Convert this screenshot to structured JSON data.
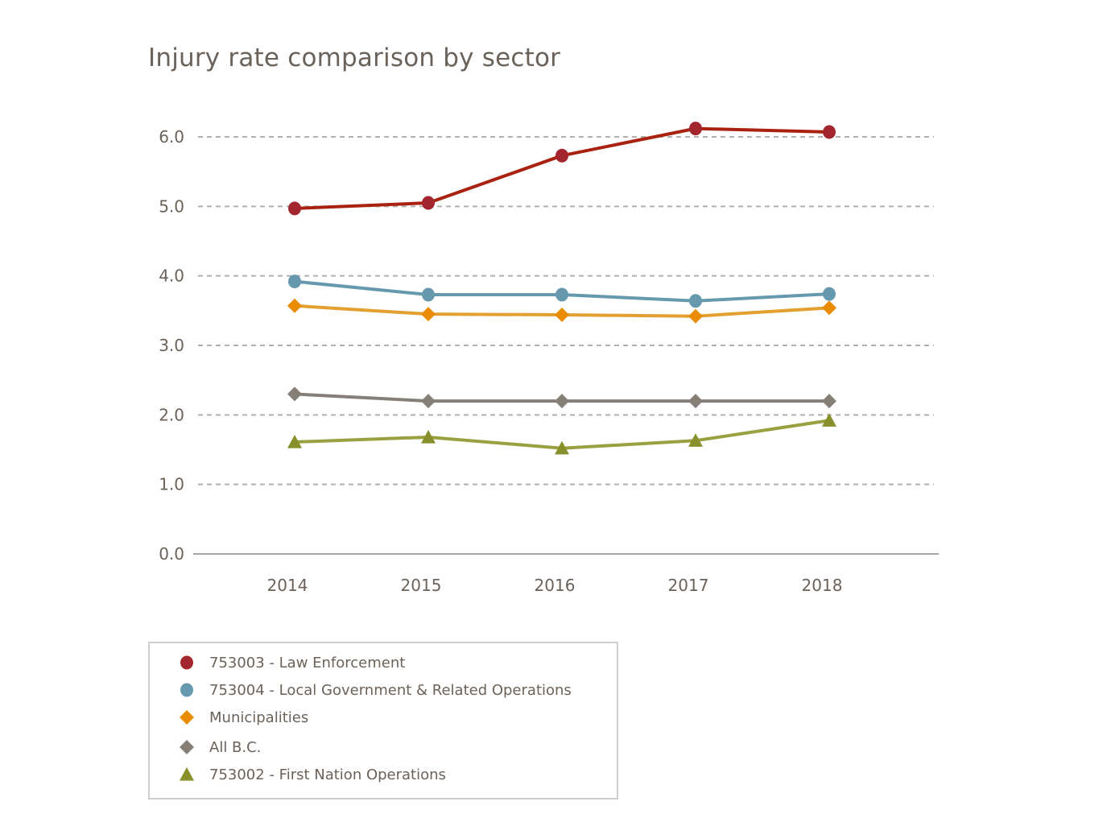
{
  "chart_data": {
    "type": "line",
    "title": "Injury rate comparison by sector",
    "xlabel": "",
    "ylabel": "",
    "x": [
      "2014",
      "2015",
      "2016",
      "2017",
      "2018"
    ],
    "ylim": [
      0,
      6.0
    ],
    "yticks": [
      "0.0",
      "1.0",
      "2.0",
      "3.0",
      "4.0",
      "5.0",
      "6.0"
    ],
    "grid": true,
    "legend_position": "bottom-left",
    "series": [
      {
        "name": "753003 - Law Enforcement",
        "marker": "circle",
        "color": "#a3262e",
        "line_color": "#a8220f",
        "values": [
          4.97,
          5.05,
          5.73,
          6.12,
          6.07
        ]
      },
      {
        "name": "753004 - Local Government & Related Operations",
        "marker": "circle",
        "color": "#6699ae",
        "line_color": "#6699ae",
        "values": [
          3.92,
          3.73,
          3.73,
          3.64,
          3.74
        ]
      },
      {
        "name": "Municipalities",
        "marker": "diamond",
        "color": "#e98c00",
        "line_color": "#e3a030",
        "values": [
          3.57,
          3.45,
          3.44,
          3.42,
          3.54
        ]
      },
      {
        "name": "All B.C.",
        "marker": "diamond",
        "color": "#857f78",
        "line_color": "#857f78",
        "values": [
          2.3,
          2.2,
          2.2,
          2.2,
          2.2
        ]
      },
      {
        "name": "753002 - First Nation Operations",
        "marker": "triangle",
        "color": "#87902b",
        "line_color": "#99a040",
        "values": [
          1.61,
          1.68,
          1.52,
          1.63,
          1.92
        ]
      }
    ]
  }
}
